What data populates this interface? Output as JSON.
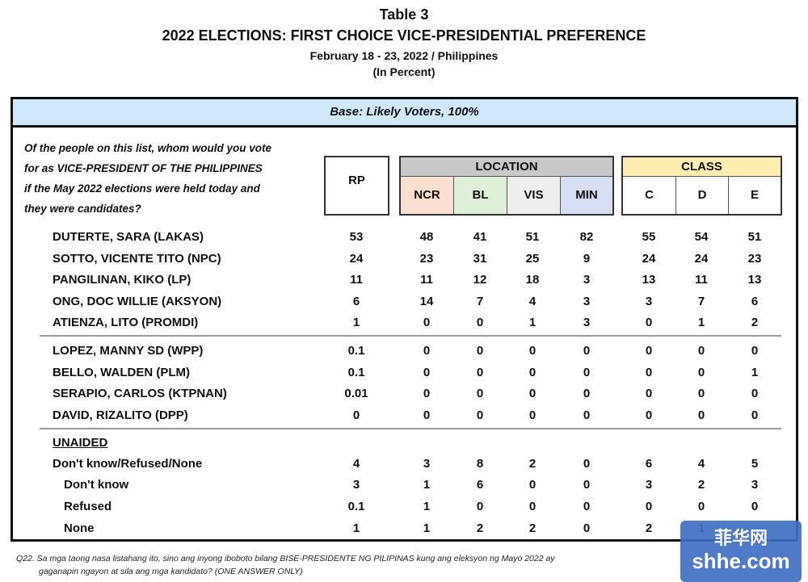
{
  "header": {
    "table_no": "Table 3",
    "title": "2022 ELECTIONS: FIRST CHOICE VICE-PRESIDENTIAL PREFERENCE",
    "date_place": "February 18 - 23, 2022 / Philippines",
    "unit": "(In Percent)"
  },
  "base": "Base: Likely Voters, 100%",
  "question_lines": [
    "Of the people on this list, whom would you vote",
    "for as VICE-PRESIDENT OF THE PHILIPPINES",
    "if the May 2022 elections were held today and",
    "they were candidates?"
  ],
  "columns": {
    "rp": "RP",
    "location_group": "LOCATION",
    "location": [
      "NCR",
      "BL",
      "VIS",
      "MIN"
    ],
    "class_group": "CLASS",
    "class": [
      "C",
      "D",
      "E"
    ]
  },
  "colors": {
    "base_bg": "#cfe9fb",
    "location_bg": "#c8c8c8",
    "class_bg": "#fdeeb0",
    "ncr": "#fbe0d2",
    "bl": "#dff0d8",
    "vis": "#eeeeee",
    "min": "#d6def3"
  },
  "rows": [
    {
      "label": "DUTERTE, SARA (LAKAS)",
      "values": [
        "53",
        "48",
        "41",
        "51",
        "82",
        "55",
        "54",
        "51"
      ]
    },
    {
      "label": "SOTTO, VICENTE TITO (NPC)",
      "values": [
        "24",
        "23",
        "31",
        "25",
        "9",
        "24",
        "24",
        "23"
      ]
    },
    {
      "label": "PANGILINAN, KIKO (LP)",
      "values": [
        "11",
        "11",
        "12",
        "18",
        "3",
        "13",
        "11",
        "13"
      ]
    },
    {
      "label": "ONG, DOC WILLIE (AKSYON)",
      "values": [
        "6",
        "14",
        "7",
        "4",
        "3",
        "3",
        "7",
        "6"
      ]
    },
    {
      "label": "ATIENZA, LITO (PROMDI)",
      "values": [
        "1",
        "0",
        "0",
        "1",
        "3",
        "0",
        "1",
        "2"
      ]
    },
    {
      "label": "LOPEZ, MANNY SD (WPP)",
      "values": [
        "0.1",
        "0",
        "0",
        "0",
        "0",
        "0",
        "0",
        "0"
      ]
    },
    {
      "label": "BELLO, WALDEN (PLM)",
      "values": [
        "0.1",
        "0",
        "0",
        "0",
        "0",
        "0",
        "0",
        "1"
      ]
    },
    {
      "label": "SERAPIO, CARLOS (KTPNAN)",
      "values": [
        "0.01",
        "0",
        "0",
        "0",
        "0",
        "0",
        "0",
        "0"
      ]
    },
    {
      "label": "DAVID, RIZALITO (DPP)",
      "values": [
        "0",
        "0",
        "0",
        "0",
        "0",
        "0",
        "0",
        "0"
      ]
    },
    {
      "label": "Don't know/Refused/None",
      "values": [
        "4",
        "3",
        "8",
        "2",
        "0",
        "6",
        "4",
        "5"
      ]
    },
    {
      "label": "Don't know",
      "sub": true,
      "values": [
        "3",
        "1",
        "6",
        "0",
        "0",
        "3",
        "2",
        "3"
      ]
    },
    {
      "label": "Refused",
      "sub": true,
      "values": [
        "0.1",
        "1",
        "0",
        "0",
        "0",
        "0",
        "0",
        "0"
      ]
    },
    {
      "label": "None",
      "sub": true,
      "values": [
        "1",
        "1",
        "2",
        "2",
        "0",
        "2",
        "1",
        ""
      ]
    }
  ],
  "unaided_label": "UNAIDED",
  "footnote": [
    "Q22.  Sa mga taong nasa listahang ito, sino ang inyong iboboto bilang BISE-PRESIDENTE NG PILIPINAS kung ang eleksyon ng Mayo 2022 ay",
    "gaganapin ngayon at sila ang mga kandidato? (ONE ANSWER ONLY)"
  ],
  "watermark": [
    "菲华网",
    "shhe.com"
  ]
}
